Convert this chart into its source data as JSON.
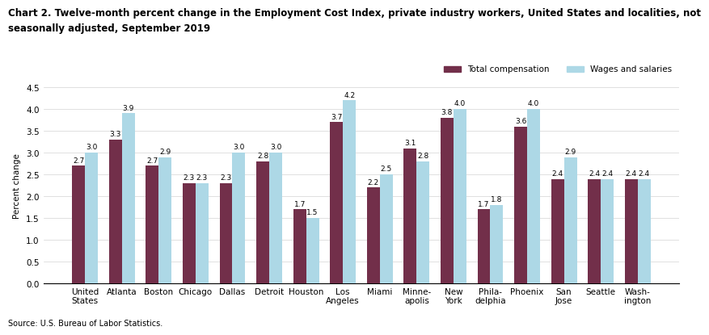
{
  "title_line1": "Chart 2. Twelve-month percent change in the Employment Cost Index, private industry workers, United States and localities, not",
  "title_line2": "seasonally adjusted, September 2019",
  "ylabel": "Percent change",
  "source": "Source: U.S. Bureau of Labor Statistics.",
  "categories": [
    "United\nStates",
    "Atlanta",
    "Boston",
    "Chicago",
    "Dallas",
    "Detroit",
    "Houston",
    "Los\nAngeles",
    "Miami",
    "Minne-\napolis",
    "New\nYork",
    "Phila-\ndelphia",
    "Phoenix",
    "San\nJose",
    "Seattle",
    "Wash-\nington"
  ],
  "total_compensation": [
    2.7,
    3.3,
    2.7,
    2.3,
    2.3,
    2.8,
    1.7,
    3.7,
    2.2,
    3.1,
    3.8,
    1.7,
    3.6,
    2.4,
    2.4,
    2.4
  ],
  "wages_and_salaries": [
    3.0,
    3.9,
    2.9,
    2.3,
    3.0,
    3.0,
    1.5,
    4.2,
    2.5,
    2.8,
    4.0,
    1.8,
    4.0,
    2.9,
    2.4,
    2.4
  ],
  "color_total": "#722F4A",
  "color_wages": "#ADD8E6",
  "ylim": [
    0,
    4.5
  ],
  "yticks": [
    0.0,
    0.5,
    1.0,
    1.5,
    2.0,
    2.5,
    3.0,
    3.5,
    4.0,
    4.5
  ],
  "bar_width": 0.35,
  "legend_labels": [
    "Total compensation",
    "Wages and salaries"
  ],
  "title_fontsize": 8.5,
  "label_fontsize": 7.5,
  "tick_fontsize": 7.5,
  "value_fontsize": 6.5,
  "background_color": "#ffffff"
}
